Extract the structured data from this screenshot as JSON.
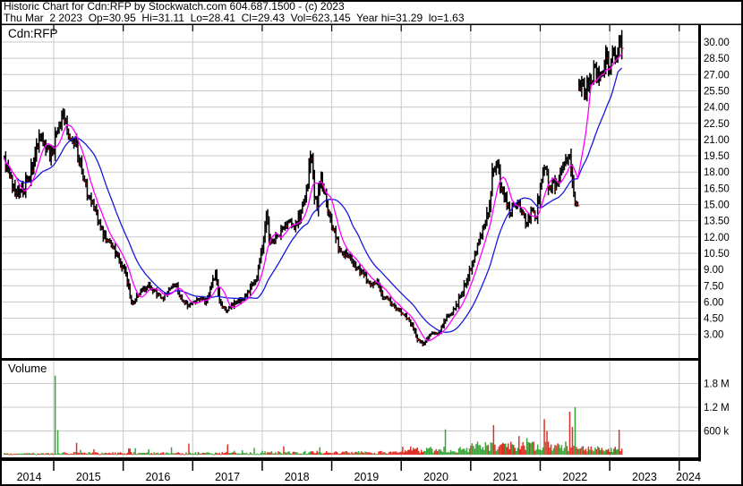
{
  "header": {
    "line1": "Historic Chart for Cdn:RFP by Stockwatch.com 604.687.1500 - (c) 2023",
    "line2": "Thu Mar  2 2023  Op=30.95  Hi=31.11  Lo=28.41  Cl=29.43  Vol=623,145  Year hi=31.29  lo=1.63"
  },
  "price_pane": {
    "symbol_label": "Cdn:RFP"
  },
  "volume_pane": {
    "label": "Volume"
  },
  "axes": {
    "price_labels": [
      "30.00",
      "28.50",
      "27.00",
      "25.50",
      "24.00",
      "22.50",
      "21.00",
      "19.50",
      "18.00",
      "16.50",
      "15.00",
      "13.50",
      "12.00",
      "10.50",
      "9.00",
      "7.50",
      "6.00",
      "4.50",
      "3.00"
    ],
    "volume_labels": [
      "1.8 M",
      "1.2 M",
      "600 k"
    ],
    "years": [
      "2014",
      "2015",
      "2016",
      "2017",
      "2018",
      "2019",
      "2020",
      "2021",
      "2022",
      "2023",
      "2024"
    ]
  },
  "colors": {
    "bg": "#ffffff",
    "grid": "#c8c8c8",
    "border": "#000000",
    "bar": "#000000",
    "down_tick": "#ff0000",
    "ma_fast": "#ff00ff",
    "ma_slow": "#1a17dd",
    "vol_up": "#3aa63a",
    "vol_down": "#e03128"
  },
  "chart_data": {
    "type": "candlestick+volume",
    "symbol": "Cdn:RFP",
    "title": "Historic Chart for Cdn:RFP",
    "x_range_years": [
      2014.29,
      2023.19
    ],
    "price_axis_range": [
      3.0,
      30.0
    ],
    "price_gridline_step": 1.5,
    "volume_axis": {
      "values": [
        1800000,
        1200000,
        600000
      ]
    },
    "quote": {
      "date": "Thu Mar 2 2023",
      "op": 30.95,
      "hi": 31.11,
      "lo": 28.41,
      "cl": 29.43,
      "vol": "623,145",
      "year_hi": 31.29,
      "year_lo": 1.63
    },
    "moving_averages": [
      {
        "period": 30,
        "color": "#1a17dd"
      },
      {
        "period": 10,
        "color": "#ff00ff"
      }
    ],
    "close_anchors": [
      [
        2014.29,
        19.2
      ],
      [
        2014.38,
        17.2
      ],
      [
        2014.49,
        15.8
      ],
      [
        2014.59,
        16.8
      ],
      [
        2014.72,
        19.0
      ],
      [
        2014.81,
        21.8
      ],
      [
        2014.9,
        20.2
      ],
      [
        2014.96,
        19.6
      ],
      [
        2015.04,
        21.5
      ],
      [
        2015.13,
        23.8
      ],
      [
        2015.19,
        22.2
      ],
      [
        2015.26,
        20.5
      ],
      [
        2015.31,
        20.9
      ],
      [
        2015.39,
        18.5
      ],
      [
        2015.48,
        16.0
      ],
      [
        2015.58,
        14.5
      ],
      [
        2015.67,
        13.2
      ],
      [
        2015.75,
        11.8
      ],
      [
        2015.85,
        11.2
      ],
      [
        2015.94,
        10.0
      ],
      [
        2016.03,
        8.8
      ],
      [
        2016.12,
        5.8
      ],
      [
        2016.2,
        6.6
      ],
      [
        2016.29,
        7.2
      ],
      [
        2016.38,
        7.5
      ],
      [
        2016.48,
        6.8
      ],
      [
        2016.57,
        6.2
      ],
      [
        2016.67,
        7.3
      ],
      [
        2016.75,
        7.7
      ],
      [
        2016.84,
        6.2
      ],
      [
        2016.93,
        5.7
      ],
      [
        2017.02,
        6.0
      ],
      [
        2017.11,
        6.3
      ],
      [
        2017.2,
        6.0
      ],
      [
        2017.29,
        8.0
      ],
      [
        2017.33,
        8.8
      ],
      [
        2017.39,
        6.0
      ],
      [
        2017.47,
        5.2
      ],
      [
        2017.55,
        5.6
      ],
      [
        2017.64,
        6.0
      ],
      [
        2017.73,
        6.4
      ],
      [
        2017.83,
        7.2
      ],
      [
        2017.93,
        8.5
      ],
      [
        2018.01,
        11.5
      ],
      [
        2018.06,
        14.2
      ],
      [
        2018.12,
        11.2
      ],
      [
        2018.19,
        11.8
      ],
      [
        2018.28,
        12.5
      ],
      [
        2018.37,
        13.2
      ],
      [
        2018.47,
        13.0
      ],
      [
        2018.56,
        14.2
      ],
      [
        2018.65,
        16.5
      ],
      [
        2018.7,
        19.8
      ],
      [
        2018.75,
        16.0
      ],
      [
        2018.79,
        14.5
      ],
      [
        2018.84,
        17.8
      ],
      [
        2018.9,
        16.0
      ],
      [
        2018.96,
        14.0
      ],
      [
        2019.03,
        12.6
      ],
      [
        2019.11,
        11.0
      ],
      [
        2019.19,
        10.4
      ],
      [
        2019.26,
        10.2
      ],
      [
        2019.33,
        9.4
      ],
      [
        2019.42,
        8.8
      ],
      [
        2019.5,
        8.3
      ],
      [
        2019.56,
        7.4
      ],
      [
        2019.65,
        7.8
      ],
      [
        2019.73,
        6.6
      ],
      [
        2019.82,
        6.2
      ],
      [
        2019.9,
        5.6
      ],
      [
        2019.99,
        5.1
      ],
      [
        2020.08,
        4.6
      ],
      [
        2020.16,
        3.8
      ],
      [
        2020.23,
        2.6
      ],
      [
        2020.3,
        2.1
      ],
      [
        2020.37,
        2.5
      ],
      [
        2020.45,
        3.2
      ],
      [
        2020.53,
        3.0
      ],
      [
        2020.62,
        4.3
      ],
      [
        2020.71,
        4.9
      ],
      [
        2020.79,
        5.6
      ],
      [
        2020.88,
        7.0
      ],
      [
        2020.95,
        8.2
      ],
      [
        2021.01,
        9.3
      ],
      [
        2021.09,
        10.8
      ],
      [
        2021.18,
        12.8
      ],
      [
        2021.26,
        14.5
      ],
      [
        2021.32,
        18.3
      ],
      [
        2021.38,
        18.9
      ],
      [
        2021.43,
        17.0
      ],
      [
        2021.49,
        15.8
      ],
      [
        2021.56,
        14.2
      ],
      [
        2021.62,
        15.2
      ],
      [
        2021.69,
        14.8
      ],
      [
        2021.75,
        14.0
      ],
      [
        2021.81,
        13.2
      ],
      [
        2021.88,
        14.6
      ],
      [
        2021.94,
        13.8
      ],
      [
        2022.02,
        17.5
      ],
      [
        2022.08,
        18.6
      ],
      [
        2022.13,
        16.2
      ],
      [
        2022.18,
        17.3
      ],
      [
        2022.24,
        16.6
      ],
      [
        2022.31,
        17.8
      ],
      [
        2022.37,
        19.2
      ],
      [
        2022.42,
        19.8
      ],
      [
        2022.47,
        16.8
      ],
      [
        2022.52,
        15.0
      ],
      [
        2022.56,
        25.9
      ],
      [
        2022.61,
        26.1
      ],
      [
        2022.66,
        25.7
      ],
      [
        2022.71,
        26.4
      ],
      [
        2022.78,
        27.2
      ],
      [
        2022.83,
        26.9
      ],
      [
        2022.89,
        27.6
      ],
      [
        2022.96,
        28.3
      ],
      [
        2023.02,
        28.2
      ],
      [
        2023.07,
        28.8
      ],
      [
        2023.12,
        29.1
      ],
      [
        2023.16,
        29.8
      ],
      [
        2023.19,
        29.43
      ]
    ],
    "volume_spikes": [
      [
        2015.03,
        2000000,
        "g"
      ],
      [
        2015.06,
        620000,
        "g"
      ],
      [
        2015.32,
        300000,
        "r"
      ],
      [
        2016.95,
        280000,
        "r"
      ],
      [
        2017.51,
        260000,
        "r"
      ],
      [
        2018.3,
        210000,
        "r"
      ],
      [
        2020.63,
        640000,
        "g"
      ],
      [
        2021.32,
        750000,
        "r"
      ],
      [
        2021.69,
        470000,
        "r"
      ],
      [
        2021.81,
        420000,
        "g"
      ],
      [
        2022.05,
        900000,
        "r"
      ],
      [
        2022.1,
        600000,
        "r"
      ],
      [
        2022.42,
        1090000,
        "r"
      ],
      [
        2022.46,
        700000,
        "r"
      ],
      [
        2022.51,
        1200000,
        "g"
      ],
      [
        2023.13,
        630000,
        "r"
      ]
    ]
  }
}
